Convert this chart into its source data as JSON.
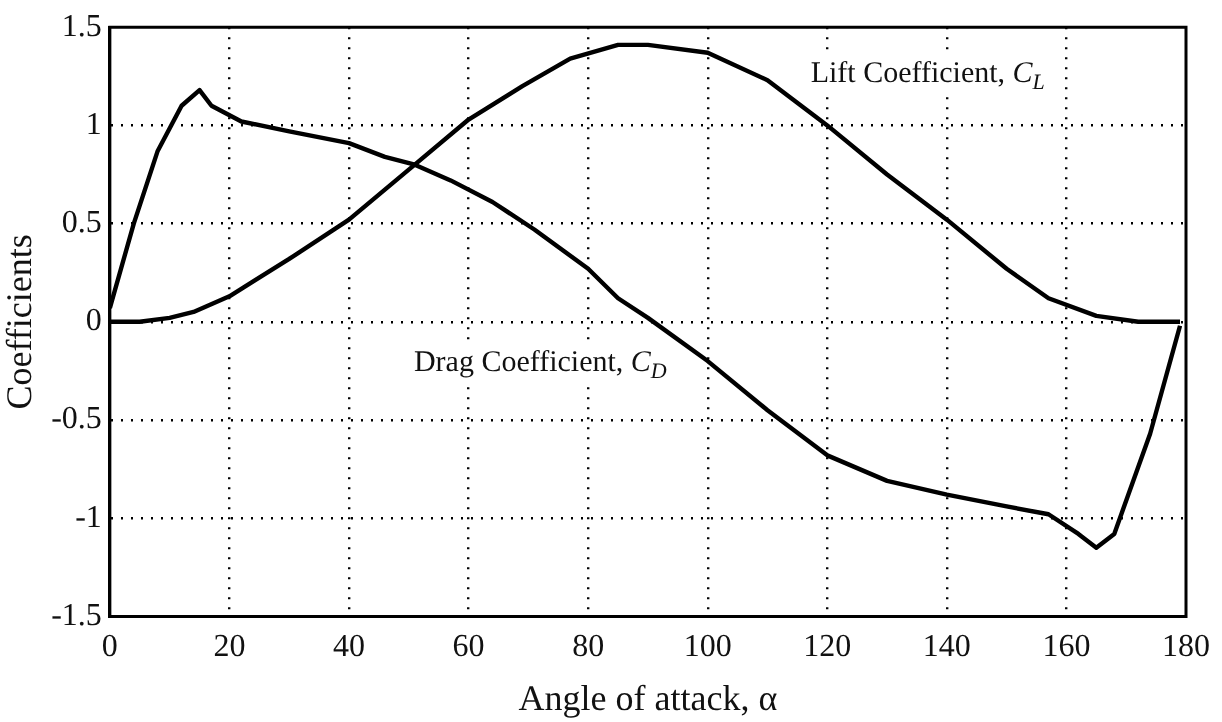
{
  "chart_data": {
    "type": "line",
    "xlabel": "Angle of attack, α",
    "ylabel": "Coefficients",
    "xlim": [
      0,
      180
    ],
    "xticks": [
      0,
      20,
      40,
      60,
      80,
      100,
      120,
      140,
      160,
      180
    ],
    "ylim": [
      -1.5,
      1.5
    ],
    "yticks": [
      -1.5,
      -1,
      -0.5,
      0,
      0.5,
      1,
      1.5
    ],
    "grid": true,
    "legend": false,
    "marker": "none",
    "line_style": "solid",
    "series": [
      {
        "name": "Drag Coefficient, C$_{D}$",
        "color": "#000000",
        "x": [
          0,
          4,
          8,
          12,
          15,
          17,
          22,
          30,
          40,
          46,
          51,
          57,
          64,
          71,
          80,
          85,
          90,
          100,
          110,
          120,
          130,
          140,
          150,
          157,
          162,
          165,
          168,
          174,
          179
        ],
        "values": [
          0.07,
          0.5,
          0.87,
          1.1,
          1.18,
          1.1,
          1.02,
          0.97,
          0.91,
          0.84,
          0.8,
          0.72,
          0.61,
          0.47,
          0.27,
          0.12,
          0.02,
          -0.2,
          -0.45,
          -0.68,
          -0.81,
          -0.88,
          -0.94,
          -0.98,
          -1.08,
          -1.15,
          -1.08,
          -0.57,
          -0.02
        ]
      },
      {
        "name": "Lift Coefficient, C$_{L}$",
        "color": "#000000",
        "x": [
          0,
          5,
          10,
          14,
          20,
          30,
          40,
          51,
          60,
          69,
          77,
          85,
          90,
          100,
          110,
          120,
          130,
          140,
          150,
          157,
          165,
          172,
          179
        ],
        "values": [
          0,
          0,
          0.02,
          0.05,
          0.13,
          0.32,
          0.52,
          0.8,
          1.03,
          1.2,
          1.34,
          1.41,
          1.41,
          1.37,
          1.23,
          1.0,
          0.75,
          0.52,
          0.27,
          0.12,
          0.03,
          0,
          0
        ]
      }
    ]
  }
}
